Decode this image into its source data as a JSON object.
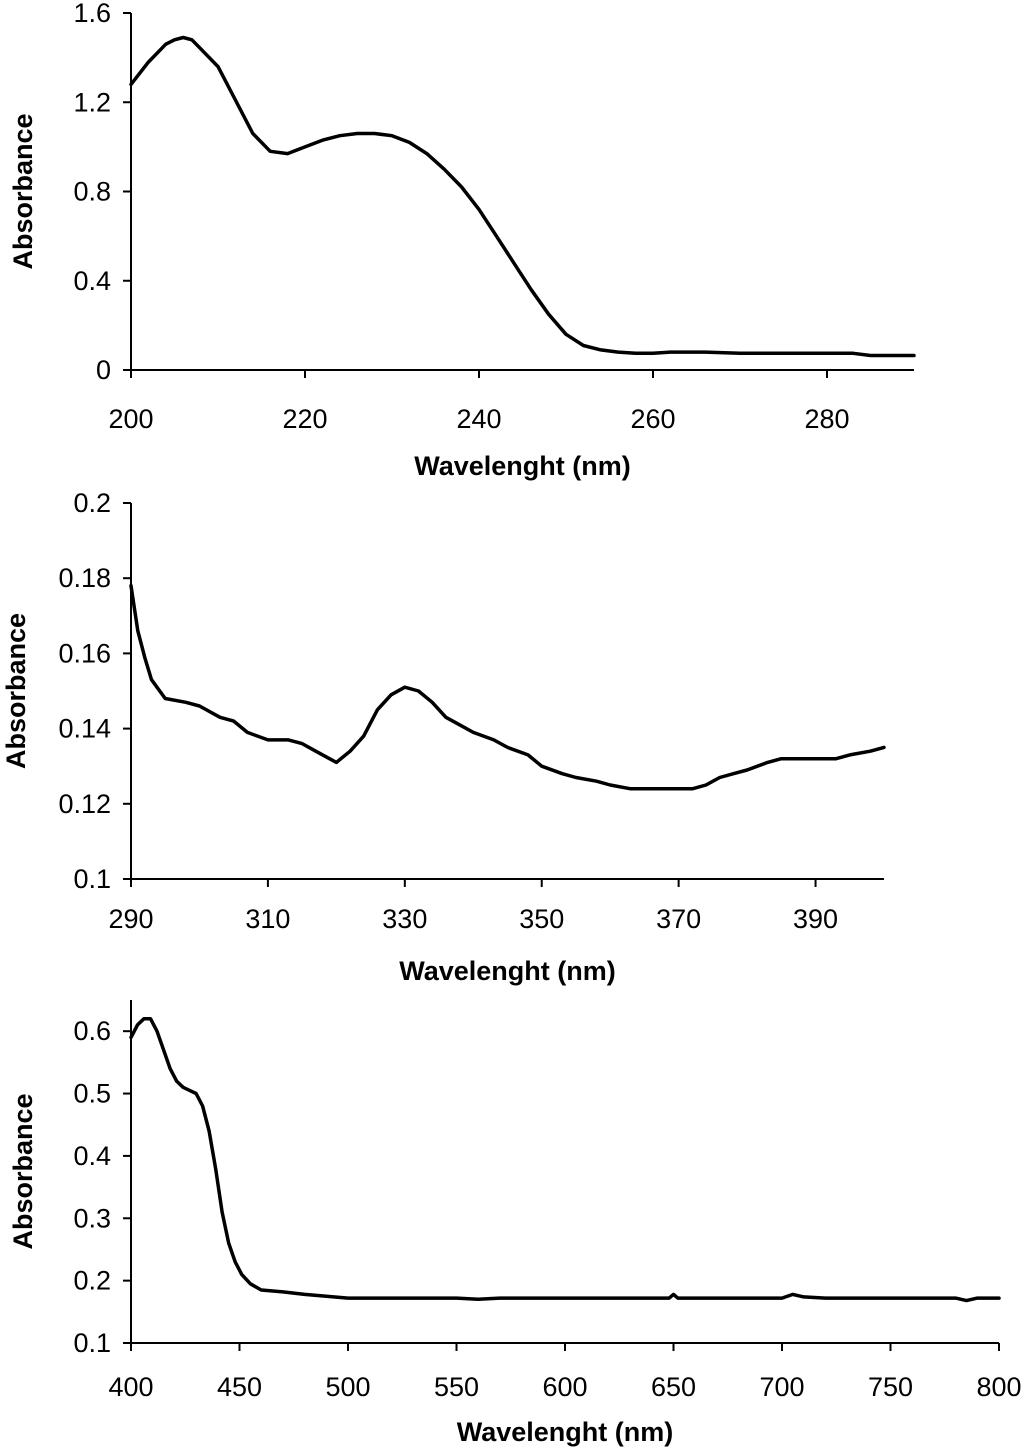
{
  "chart_data": [
    {
      "type": "line",
      "xlabel": "Wavelenght (nm)",
      "ylabel": "Absorbance",
      "xlim": [
        200,
        290
      ],
      "ylim": [
        0,
        1.6
      ],
      "xticks": [
        200,
        220,
        240,
        260,
        280
      ],
      "xtick_labels": [
        "200",
        "220",
        "240",
        "260",
        "280"
      ],
      "yticks": [
        0,
        0.4,
        0.8,
        1.2,
        1.6
      ],
      "ytick_labels": [
        "0",
        "0.4",
        "0.8",
        "1.2",
        "1.6"
      ],
      "grid": false,
      "series": [
        {
          "x": [
            200,
            202,
            204,
            205,
            206,
            207,
            208,
            210,
            212,
            214,
            216,
            218,
            220,
            222,
            224,
            226,
            228,
            230,
            232,
            234,
            236,
            238,
            240,
            242,
            244,
            246,
            248,
            250,
            252,
            254,
            256,
            258,
            260,
            262,
            266,
            270,
            275,
            280,
            283,
            285,
            288,
            290
          ],
          "y": [
            1.28,
            1.38,
            1.46,
            1.48,
            1.49,
            1.48,
            1.44,
            1.36,
            1.21,
            1.06,
            0.98,
            0.97,
            1.0,
            1.03,
            1.05,
            1.06,
            1.06,
            1.05,
            1.02,
            0.97,
            0.9,
            0.82,
            0.72,
            0.6,
            0.48,
            0.36,
            0.25,
            0.16,
            0.11,
            0.09,
            0.08,
            0.075,
            0.075,
            0.08,
            0.08,
            0.075,
            0.075,
            0.075,
            0.075,
            0.065,
            0.065,
            0.065
          ]
        }
      ]
    },
    {
      "type": "line",
      "xlabel": "Wavelenght (nm)",
      "ylabel": "Absorbance",
      "xlim": [
        290,
        400
      ],
      "ylim": [
        0.1,
        0.2
      ],
      "xticks": [
        290,
        310,
        330,
        350,
        370,
        390
      ],
      "xtick_labels": [
        "290",
        "310",
        "330",
        "350",
        "370",
        "390"
      ],
      "yticks": [
        0.1,
        0.12,
        0.14,
        0.16,
        0.18,
        0.2
      ],
      "ytick_labels": [
        "0.1",
        "0.12",
        "0.14",
        "0.16",
        "0.18",
        "0.2"
      ],
      "grid": false,
      "series": [
        {
          "x": [
            290,
            291,
            292,
            293,
            295,
            298,
            300,
            303,
            305,
            307,
            310,
            313,
            315,
            317,
            319,
            320,
            322,
            324,
            326,
            328,
            330,
            332,
            334,
            336,
            338,
            340,
            343,
            345,
            348,
            350,
            353,
            355,
            358,
            360,
            363,
            366,
            370,
            372,
            374,
            376,
            378,
            380,
            383,
            385,
            388,
            390,
            393,
            395,
            398,
            400
          ],
          "y": [
            0.178,
            0.166,
            0.159,
            0.153,
            0.148,
            0.147,
            0.146,
            0.143,
            0.142,
            0.139,
            0.137,
            0.137,
            0.136,
            0.134,
            0.132,
            0.131,
            0.134,
            0.138,
            0.145,
            0.149,
            0.151,
            0.15,
            0.147,
            0.143,
            0.141,
            0.139,
            0.137,
            0.135,
            0.133,
            0.13,
            0.128,
            0.127,
            0.126,
            0.125,
            0.124,
            0.124,
            0.124,
            0.124,
            0.125,
            0.127,
            0.128,
            0.129,
            0.131,
            0.132,
            0.132,
            0.132,
            0.132,
            0.133,
            0.134,
            0.135
          ]
        }
      ]
    },
    {
      "type": "line",
      "xlabel": "Wavelenght (nm)",
      "ylabel": "Absorbance",
      "xlim": [
        400,
        800
      ],
      "ylim": [
        0.1,
        0.65
      ],
      "xticks": [
        400,
        450,
        500,
        550,
        600,
        650,
        700,
        750,
        800
      ],
      "xtick_labels": [
        "400",
        "450",
        "500",
        "550",
        "600",
        "650",
        "700",
        "750",
        "800"
      ],
      "yticks": [
        0.1,
        0.2,
        0.3,
        0.4,
        0.5,
        0.6
      ],
      "ytick_labels": [
        "0.1",
        "0.2",
        "0.3",
        "0.4",
        "0.5",
        "0.6"
      ],
      "grid": false,
      "series": [
        {
          "x": [
            400,
            403,
            406,
            409,
            412,
            415,
            418,
            421,
            424,
            427,
            430,
            433,
            436,
            439,
            442,
            445,
            448,
            451,
            455,
            460,
            470,
            480,
            490,
            500,
            520,
            550,
            560,
            570,
            600,
            640,
            648,
            650,
            652,
            660,
            700,
            705,
            710,
            720,
            750,
            780,
            785,
            790,
            800
          ],
          "y": [
            0.59,
            0.61,
            0.62,
            0.62,
            0.6,
            0.57,
            0.54,
            0.52,
            0.51,
            0.505,
            0.5,
            0.48,
            0.44,
            0.38,
            0.31,
            0.26,
            0.23,
            0.21,
            0.195,
            0.185,
            0.182,
            0.178,
            0.175,
            0.172,
            0.172,
            0.172,
            0.17,
            0.172,
            0.172,
            0.172,
            0.172,
            0.178,
            0.172,
            0.172,
            0.172,
            0.178,
            0.174,
            0.172,
            0.172,
            0.172,
            0.168,
            0.172,
            0.172
          ]
        }
      ]
    }
  ]
}
